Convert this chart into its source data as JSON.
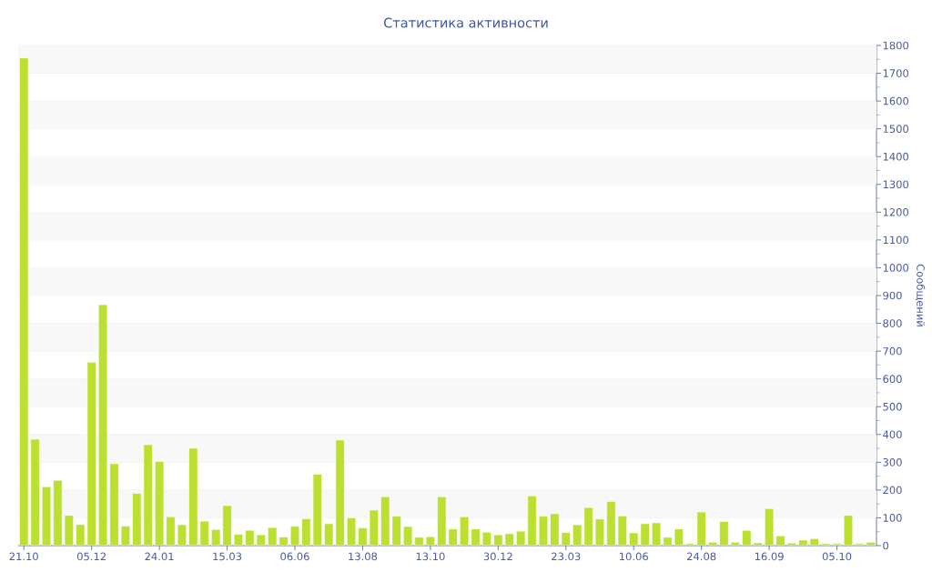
{
  "chart_data": {
    "type": "bar",
    "title": "Статистика активности",
    "ylabel": "Сообщений",
    "categories": [
      "21.10",
      null,
      null,
      null,
      null,
      null,
      "05.12",
      null,
      null,
      null,
      null,
      null,
      "24.01",
      null,
      null,
      null,
      null,
      null,
      "15.03",
      null,
      null,
      null,
      null,
      null,
      "06.06",
      null,
      null,
      null,
      null,
      null,
      "13.08",
      null,
      null,
      null,
      null,
      null,
      "13.10",
      null,
      null,
      null,
      null,
      null,
      "30.12",
      null,
      null,
      null,
      null,
      null,
      "23.03",
      null,
      null,
      null,
      null,
      null,
      "10.06",
      null,
      null,
      null,
      null,
      null,
      "24.08",
      null,
      null,
      null,
      null,
      null,
      "16.09",
      null,
      null,
      null,
      null,
      null,
      "05.10",
      null,
      null,
      null
    ],
    "values": [
      1755,
      383,
      212,
      235,
      109,
      76,
      660,
      867,
      295,
      70,
      188,
      363,
      303,
      104,
      75,
      351,
      88,
      58,
      144,
      41,
      55,
      39,
      65,
      31,
      70,
      97,
      257,
      79,
      380,
      100,
      64,
      128,
      176,
      106,
      69,
      30,
      32,
      176,
      60,
      104,
      60,
      48,
      39,
      43,
      52,
      179,
      106,
      115,
      47,
      75,
      137,
      96,
      159,
      107,
      46,
      79,
      82,
      30,
      60,
      7,
      121,
      12,
      87,
      12,
      55,
      10,
      133,
      35,
      9,
      20,
      25,
      7,
      7,
      109,
      7,
      12
    ],
    "color": "#bbe031",
    "ylim": [
      0,
      1800
    ],
    "yticks": [
      0,
      {
        "value": 50,
        "label": null
      },
      100,
      {
        "value": 150,
        "label": null
      },
      200,
      {
        "value": 250,
        "label": null
      },
      300,
      {
        "value": 350,
        "label": null
      },
      400,
      {
        "value": 450,
        "label": null
      },
      500,
      {
        "value": 550,
        "label": null
      },
      600,
      {
        "value": 650,
        "label": null
      },
      700,
      {
        "value": 750,
        "label": null
      },
      800,
      {
        "value": 850,
        "label": null
      },
      900,
      {
        "value": 950,
        "label": null
      },
      1000,
      {
        "value": 1050,
        "label": null
      },
      1100,
      {
        "value": 1150,
        "label": null
      },
      1200,
      {
        "value": 1250,
        "label": null
      },
      1300,
      {
        "value": 1350,
        "label": null
      },
      1400,
      {
        "value": 1450,
        "label": null
      },
      1500,
      {
        "value": 1550,
        "label": null
      },
      1600,
      {
        "value": 1650,
        "label": null
      },
      1700,
      {
        "value": 1750,
        "label": null
      },
      1800
    ],
    "grid": "y"
  }
}
